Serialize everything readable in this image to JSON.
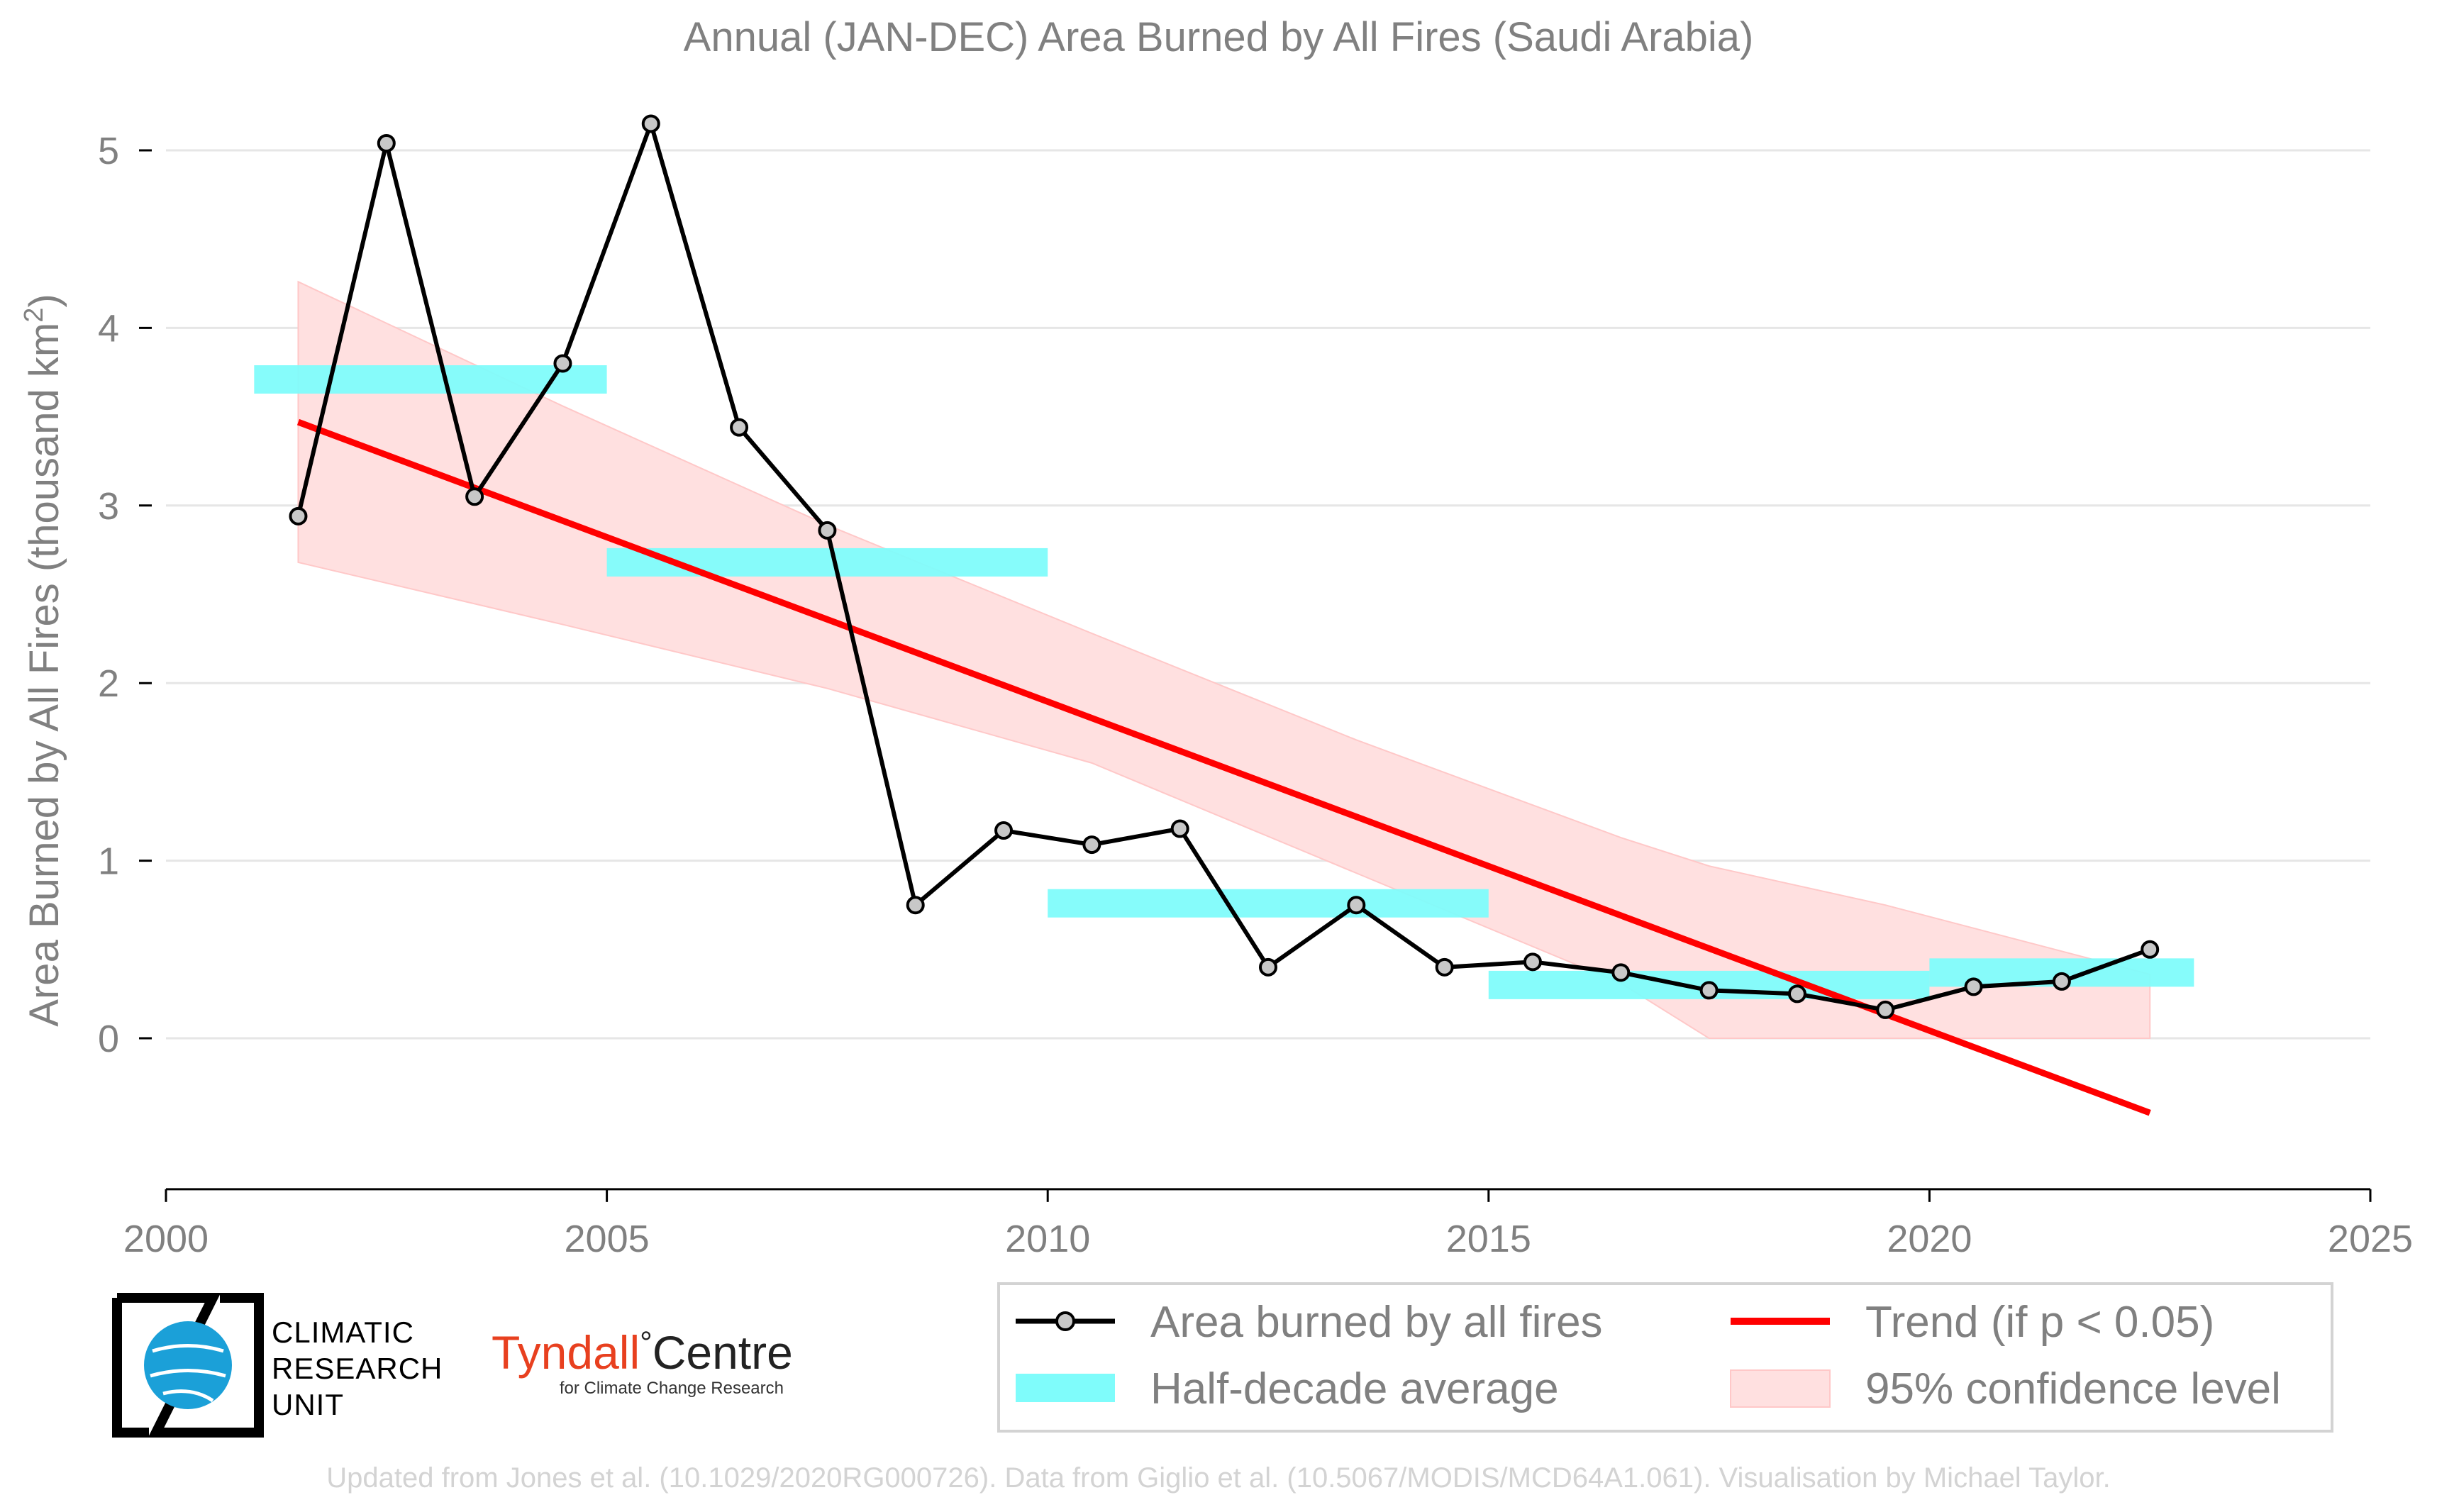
{
  "chart_data": {
    "type": "line",
    "title": "Annual (JAN-DEC) Area Burned by All Fires (Saudi Arabia)",
    "ylabel": "Area Burned by All Fires (thousand km",
    "ylabel_sup": "2",
    "ylabel_end": ")",
    "xlim": [
      2000,
      2025
    ],
    "ylim": [
      -0.85,
      5.3
    ],
    "xticks": [
      2000,
      2005,
      2010,
      2015,
      2020,
      2025
    ],
    "yticks": [
      0,
      1,
      2,
      3,
      4,
      5
    ],
    "grid": "horizontal",
    "legend_position": "bottom-right",
    "series": [
      {
        "name": "Area burned by all fires",
        "x": [
          2001.5,
          2002.5,
          2003.5,
          2004.5,
          2005.5,
          2006.5,
          2007.5,
          2008.5,
          2009.5,
          2010.5,
          2011.5,
          2012.5,
          2013.5,
          2014.5,
          2015.5,
          2016.5,
          2017.5,
          2018.5,
          2019.5,
          2020.5,
          2021.5,
          2022.5
        ],
        "values": [
          2.94,
          5.04,
          3.05,
          3.8,
          5.15,
          3.44,
          2.86,
          0.75,
          1.17,
          1.09,
          1.18,
          0.4,
          0.75,
          0.4,
          0.43,
          0.37,
          0.27,
          0.25,
          0.16,
          0.29,
          0.32,
          0.5
        ]
      },
      {
        "name": "Half-decade average",
        "segments": [
          {
            "x0": 2001,
            "x1": 2005,
            "y": 3.71
          },
          {
            "x0": 2005,
            "x1": 2010,
            "y": 2.68
          },
          {
            "x0": 2010,
            "x1": 2015,
            "y": 0.76
          },
          {
            "x0": 2015,
            "x1": 2020,
            "y": 0.3
          },
          {
            "x0": 2020,
            "x1": 2023,
            "y": 0.37
          }
        ]
      },
      {
        "name": "Trend (if p < 0.05)",
        "x": [
          2001.5,
          2022.5
        ],
        "values": [
          3.47,
          -0.42
        ]
      },
      {
        "name": "95% confidence level",
        "x": [
          2001.5,
          2004.5,
          2007.5,
          2010.5,
          2013.5,
          2016.5,
          2017.5,
          2019.5,
          2022.5
        ],
        "upper": [
          4.26,
          3.56,
          2.89,
          2.28,
          1.68,
          1.13,
          0.97,
          0.75,
          0.36
        ],
        "lower": [
          2.68,
          2.33,
          1.97,
          1.55,
          0.93,
          0.31,
          0.0,
          0.0,
          0.0
        ]
      }
    ]
  },
  "legend": {
    "items": [
      "Area burned by all fires",
      "Trend (if p < 0.05)",
      "Half-decade average",
      "95% confidence level"
    ]
  },
  "colors": {
    "line": "#000000",
    "marker_fill": "#c8c8c8",
    "half_decade": "#7ffcfb",
    "trend": "#ff0000",
    "ci_fill": "#ffe0e0",
    "grid": "#e6e6e6",
    "text": "#808080"
  },
  "logos": {
    "cru": [
      "CLIMATIC",
      "RESEARCH",
      "UNIT"
    ],
    "tyndall_main": "Tyndall",
    "tyndall_degree": "°",
    "tyndall_centre": "Centre",
    "tyndall_sub": "for Climate Change Research"
  },
  "footer": "Updated from Jones et al. (10.1029/2020RG000726). Data from Giglio et al. (10.5067/MODIS/MCD64A1.061). Visualisation by Michael Taylor."
}
